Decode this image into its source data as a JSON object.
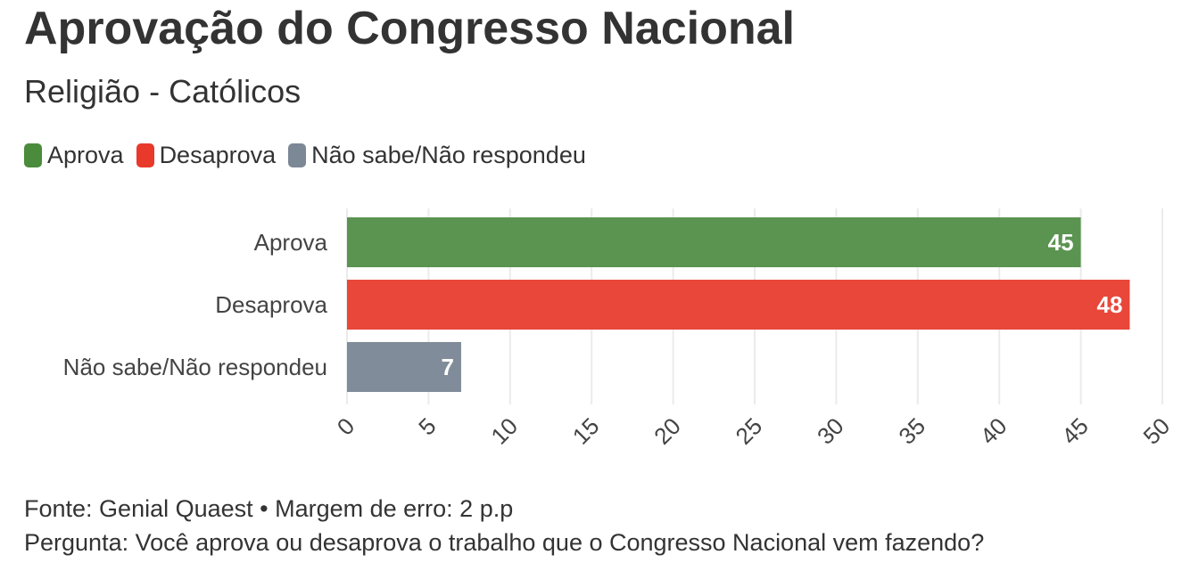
{
  "chart_data": {
    "type": "bar",
    "orientation": "horizontal",
    "title": "Aprovação do Congresso Nacional",
    "subtitle": "Religião - Católicos",
    "categories": [
      "Aprova",
      "Desaprova",
      "Não sabe/Não respondeu"
    ],
    "values": [
      45,
      48,
      7
    ],
    "data_labels": [
      "45",
      "48",
      "7"
    ],
    "colors": [
      "#5a9450",
      "#e8473a",
      "#808c99"
    ],
    "legend": [
      {
        "label": "Aprova",
        "color": "#4a8c3c"
      },
      {
        "label": "Desaprova",
        "color": "#e8392a"
      },
      {
        "label": "Não sabe/Não respondeu",
        "color": "#7d8896"
      }
    ],
    "legend_position": "top-left",
    "xlim": [
      0,
      50
    ],
    "x_ticks": [
      0,
      5,
      10,
      15,
      20,
      25,
      30,
      35,
      40,
      45,
      50
    ],
    "grid": true,
    "xlabel": "",
    "ylabel": ""
  },
  "footer": {
    "source": "Fonte: Genial Quaest • Margem de erro: 2 p.p",
    "question": "Pergunta: Você aprova ou desaprova o trabalho que o Congresso Nacional vem fazendo?"
  }
}
